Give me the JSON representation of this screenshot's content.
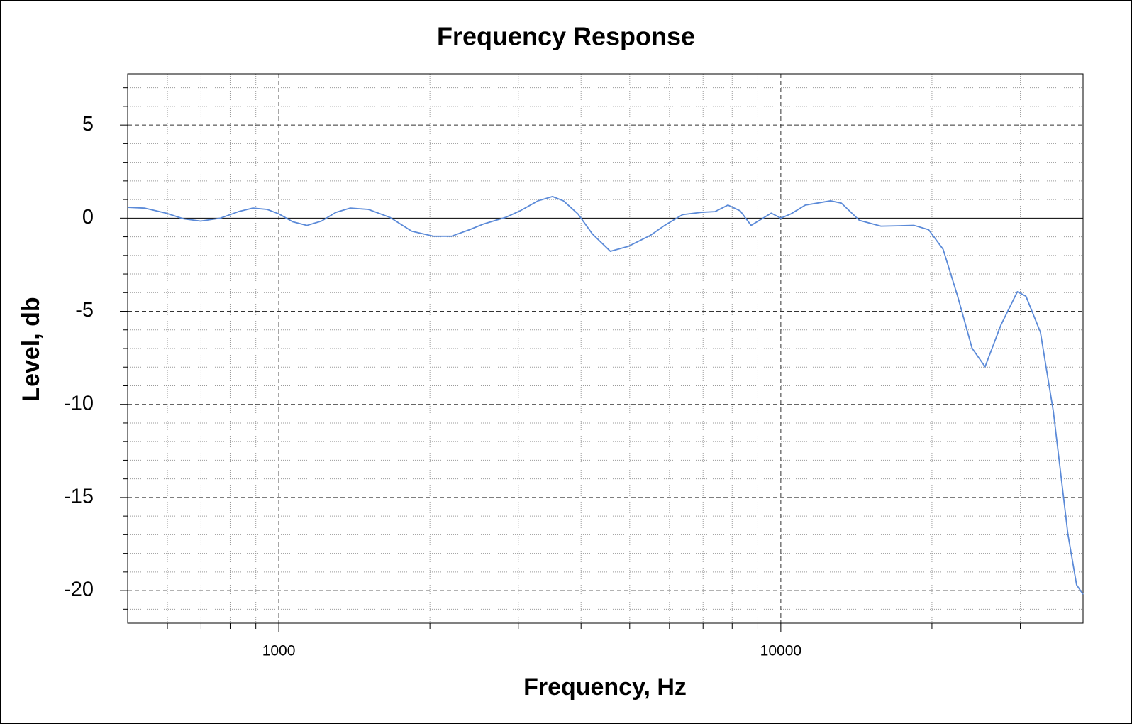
{
  "chart_data": {
    "type": "line",
    "title": "Frequency Response",
    "xlabel": "Frequency, Hz",
    "ylabel": "Level, db",
    "xscale": "log",
    "grid": true,
    "xlim": [
      500,
      40000
    ],
    "ylim": [
      -21.75,
      7.75
    ],
    "xticks": [
      1000,
      10000
    ],
    "yticks": [
      5,
      0,
      -5,
      -10,
      -15,
      -20
    ],
    "x_minor_ticks": [
      600,
      700,
      800,
      900,
      2000,
      3000,
      4000,
      5000,
      6000,
      7000,
      8000,
      9000,
      20000,
      30000
    ],
    "y_minor_ticks": [
      7,
      6,
      4,
      3,
      2,
      1,
      -1,
      -2,
      -3,
      -4,
      -6,
      -7,
      -8,
      -9,
      -11,
      -12,
      -13,
      -14,
      -16,
      -17,
      -18,
      -19,
      -21
    ],
    "series": [
      {
        "color": "#5b8ad8",
        "x": [
          500,
          540,
          596,
          647,
          699,
          765,
          831,
          888,
          948,
          1000,
          1065,
          1138,
          1216,
          1299,
          1388,
          1508,
          1665,
          1840,
          2032,
          2208,
          2398,
          2561,
          2830,
          3023,
          3283,
          3509,
          3690,
          3943,
          4214,
          4577,
          4973,
          5493,
          5869,
          6374,
          6921,
          7390,
          7846,
          8301,
          8725,
          9166,
          9570,
          10000,
          10475,
          11185,
          12560,
          13200,
          14340,
          15830,
          18430,
          19700,
          21050,
          22500,
          24040,
          25520,
          27440,
          29590,
          30780,
          32890,
          34910,
          37320,
          38830,
          40000
        ],
        "values": [
          0.58,
          0.54,
          0.27,
          -0.04,
          -0.16,
          0,
          0.35,
          0.54,
          0.47,
          0.23,
          -0.19,
          -0.39,
          -0.16,
          0.31,
          0.54,
          0.47,
          0.04,
          -0.7,
          -0.97,
          -0.97,
          -0.62,
          -0.31,
          0.04,
          0.39,
          0.93,
          1.16,
          0.93,
          0.23,
          -0.85,
          -1.78,
          -1.51,
          -0.93,
          -0.39,
          0.19,
          0.31,
          0.35,
          0.7,
          0.39,
          -0.39,
          -0.04,
          0.27,
          0,
          0.23,
          0.7,
          0.93,
          0.81,
          -0.12,
          -0.43,
          -0.39,
          -0.62,
          -1.67,
          -4.19,
          -6.98,
          -7.98,
          -5.74,
          -3.95,
          -4.19,
          -6.12,
          -10.39,
          -16.98,
          -19.69,
          -20.2
        ]
      }
    ]
  }
}
